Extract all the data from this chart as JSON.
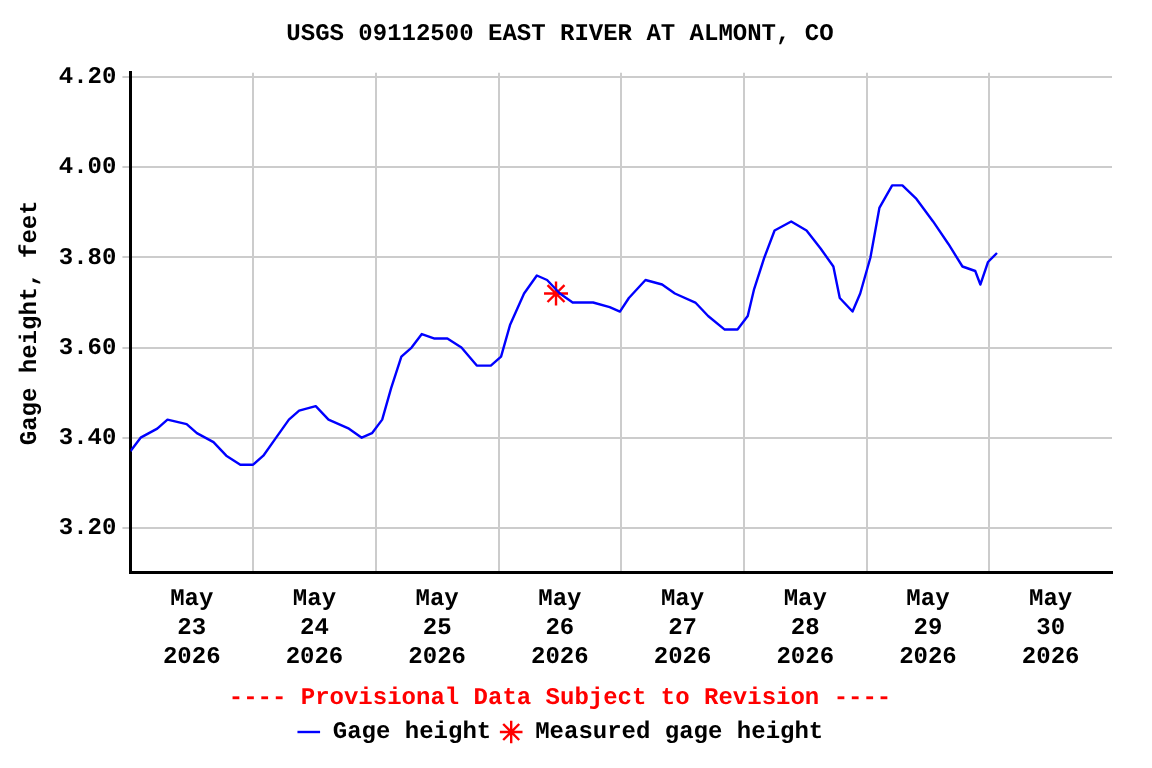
{
  "chart_data": {
    "type": "line",
    "title": "USGS 09112500 EAST RIVER AT ALMONT, CO",
    "ylabel": "Gage height, feet",
    "annotations": [
      "---- Provisional Data Subject to Revision ----"
    ],
    "xlim": [
      "2026-05-23T00:00",
      "2026-05-31T00:00"
    ],
    "xticks": [
      {
        "value": "2026-05-23T12:00",
        "label": "May\n23\n2026"
      },
      {
        "value": "2026-05-24T12:00",
        "label": "May\n24\n2026"
      },
      {
        "value": "2026-05-25T12:00",
        "label": "May\n25\n2026"
      },
      {
        "value": "2026-05-26T12:00",
        "label": "May\n26\n2026"
      },
      {
        "value": "2026-05-27T12:00",
        "label": "May\n27\n2026"
      },
      {
        "value": "2026-05-28T12:00",
        "label": "May\n28\n2026"
      },
      {
        "value": "2026-05-29T12:00",
        "label": "May\n29\n2026"
      },
      {
        "value": "2026-05-30T12:00",
        "label": "May\n30\n2026"
      },
      {
        "value": "2026-05-24T00:00",
        "label": null
      },
      {
        "value": "2026-05-25T00:00",
        "label": null
      },
      {
        "value": "2026-05-26T00:00",
        "label": null
      },
      {
        "value": "2026-05-27T00:00",
        "label": null
      },
      {
        "value": "2026-05-28T00:00",
        "label": null
      },
      {
        "value": "2026-05-29T00:00",
        "label": null
      },
      {
        "value": "2026-05-30T00:00",
        "label": null
      }
    ],
    "ylim": [
      3.1,
      4.21
    ],
    "yticks": [
      {
        "value": 3.2,
        "label": "3.20"
      },
      {
        "value": 3.4,
        "label": "3.40"
      },
      {
        "value": 3.6,
        "label": "3.60"
      },
      {
        "value": 3.8,
        "label": "3.80"
      },
      {
        "value": 4.0,
        "label": "4.00"
      },
      {
        "value": 4.2,
        "label": "4.20"
      }
    ],
    "grid": true,
    "legend": "bottom",
    "series": [
      {
        "name": "Gage height",
        "color": "#0000ff",
        "marker": "none",
        "x": [
          "2026-05-23T00:00",
          "2026-05-23T02:00",
          "2026-05-23T05:15",
          "2026-05-23T07:15",
          "2026-05-23T11:00",
          "2026-05-23T13:00",
          "2026-05-23T16:15",
          "2026-05-23T18:45",
          "2026-05-23T21:30",
          "2026-05-24T00:00",
          "2026-05-24T02:00",
          "2026-05-24T04:30",
          "2026-05-24T07:00",
          "2026-05-24T09:00",
          "2026-05-24T12:15",
          "2026-05-24T14:45",
          "2026-05-24T18:45",
          "2026-05-24T21:15",
          "2026-05-24T23:15",
          "2026-05-25T01:15",
          "2026-05-25T03:00",
          "2026-05-25T05:00",
          "2026-05-25T07:00",
          "2026-05-25T09:00",
          "2026-05-25T11:30",
          "2026-05-25T14:00",
          "2026-05-25T16:45",
          "2026-05-25T19:45",
          "2026-05-25T22:30",
          "2026-05-26T00:30",
          "2026-05-26T02:15",
          "2026-05-26T05:00",
          "2026-05-26T07:30",
          "2026-05-26T09:30",
          "2026-05-26T12:00",
          "2026-05-26T14:30",
          "2026-05-26T18:30",
          "2026-05-26T21:45",
          "2026-05-26T23:45",
          "2026-05-27T01:30",
          "2026-05-27T04:45",
          "2026-05-27T08:00",
          "2026-05-27T10:30",
          "2026-05-27T14:30",
          "2026-05-27T17:00",
          "2026-05-27T20:15",
          "2026-05-27T22:45",
          "2026-05-28T00:45",
          "2026-05-28T02:00",
          "2026-05-28T04:00",
          "2026-05-28T06:00",
          "2026-05-28T09:15",
          "2026-05-28T12:15",
          "2026-05-28T15:00",
          "2026-05-28T17:30",
          "2026-05-28T18:45",
          "2026-05-28T21:15",
          "2026-05-28T22:45",
          "2026-05-29T00:45",
          "2026-05-29T02:30",
          "2026-05-29T05:00",
          "2026-05-29T07:00",
          "2026-05-29T09:45",
          "2026-05-29T13:00",
          "2026-05-29T16:00",
          "2026-05-29T18:45",
          "2026-05-29T21:15",
          "2026-05-29T22:15",
          "2026-05-29T23:45",
          "2026-05-30T01:30"
        ],
        "values": [
          3.37,
          3.4,
          3.42,
          3.44,
          3.43,
          3.41,
          3.39,
          3.36,
          3.34,
          3.34,
          3.36,
          3.4,
          3.44,
          3.46,
          3.47,
          3.44,
          3.42,
          3.4,
          3.41,
          3.44,
          3.51,
          3.58,
          3.6,
          3.63,
          3.62,
          3.62,
          3.6,
          3.56,
          3.56,
          3.58,
          3.65,
          3.72,
          3.76,
          3.75,
          3.72,
          3.7,
          3.7,
          3.69,
          3.68,
          3.71,
          3.75,
          3.74,
          3.72,
          3.7,
          3.67,
          3.64,
          3.64,
          3.67,
          3.73,
          3.8,
          3.86,
          3.88,
          3.86,
          3.82,
          3.78,
          3.71,
          3.68,
          3.72,
          3.8,
          3.91,
          3.96,
          3.96,
          3.93,
          3.88,
          3.83,
          3.78,
          3.77,
          3.74,
          3.79,
          3.81
        ]
      },
      {
        "name": "Measured gage height",
        "type": "scatter",
        "color": "#ff0000",
        "marker": "cross",
        "x": [
          "2026-05-26T11:15"
        ],
        "values": [
          3.72
        ]
      }
    ]
  }
}
